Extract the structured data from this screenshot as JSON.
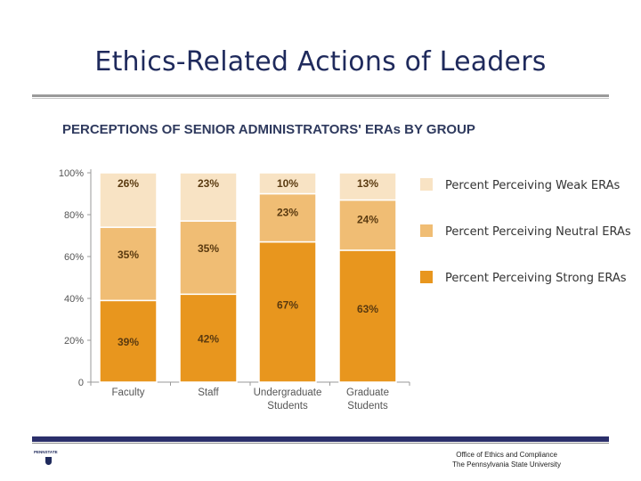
{
  "slide": {
    "title": "Ethics-Related Actions of Leaders",
    "footer_line1": "Office of Ethics and Compliance",
    "footer_line2": "The Pennsylvania State University",
    "logo_text": "PENNSTATE"
  },
  "colors": {
    "strong": "#e8961e",
    "neutral": "#f0bd74",
    "weak": "#f8e3c4",
    "title": "#1f2a5c"
  },
  "chart_data": {
    "type": "bar",
    "stacked": true,
    "title": "PERCEPTIONS OF SENIOR ADMINISTRATORS' ERAs BY GROUP",
    "categories": [
      [
        "Faculty"
      ],
      [
        "Staff"
      ],
      [
        "Undergraduate",
        "Students"
      ],
      [
        "Graduate",
        "Students"
      ]
    ],
    "series": [
      {
        "name": "Percent Perceiving Strong ERAs",
        "key": "strong",
        "values": [
          39,
          42,
          67,
          63
        ],
        "labels": [
          "39%",
          "42%",
          "67%",
          "63%"
        ]
      },
      {
        "name": "Percent Perceiving Neutral ERAs",
        "key": "neutral",
        "values": [
          35,
          35,
          23,
          24
        ],
        "labels": [
          "35%",
          "35%",
          "23%",
          "24%"
        ]
      },
      {
        "name": "Percent Perceiving Weak ERAs",
        "key": "weak",
        "values": [
          26,
          23,
          10,
          13
        ],
        "labels": [
          "26%",
          "23%",
          "10%",
          "13%"
        ]
      }
    ],
    "yticks": [
      0,
      20,
      40,
      60,
      80,
      100
    ],
    "ytick_labels": [
      "0",
      "20%",
      "40%",
      "60%",
      "80%",
      "100%"
    ],
    "ylim": [
      0,
      100
    ],
    "legend_position": "right",
    "legend_order": [
      "weak",
      "neutral",
      "strong"
    ]
  }
}
